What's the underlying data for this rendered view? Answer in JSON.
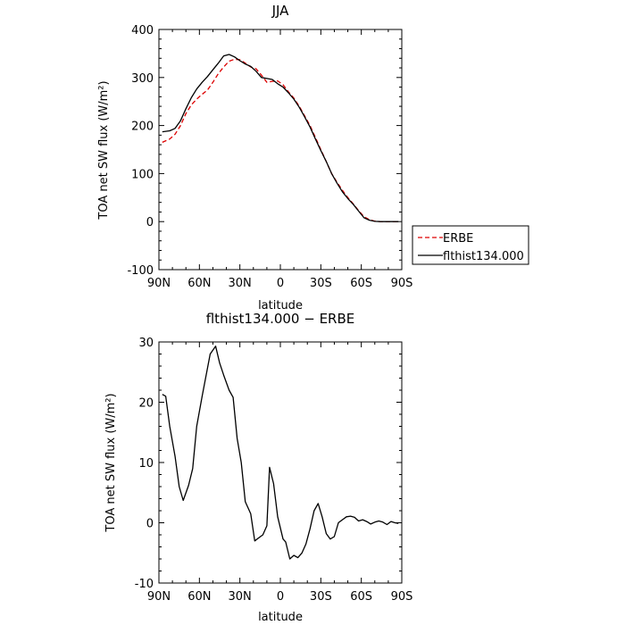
{
  "chart_data": [
    {
      "type": "line",
      "title": "JJA",
      "xlabel": "latitude",
      "ylabel": "TOA net SW flux (W/m²)",
      "xlim": [
        90,
        -90
      ],
      "ylim": [
        -100,
        400
      ],
      "x_ticks": [
        "90N",
        "60N",
        "30N",
        "0",
        "30S",
        "60S",
        "90S"
      ],
      "y_ticks": [
        "-100",
        "0",
        "100",
        "200",
        "300",
        "400"
      ],
      "legend_position": "right-bottom-outside",
      "series": [
        {
          "name": "ERBE",
          "color": "#dd0000",
          "dash": true,
          "x": [
            87.5,
            82,
            78,
            74,
            70,
            66,
            62,
            58,
            54,
            50,
            46,
            42,
            38,
            34,
            30,
            26,
            22,
            18,
            14,
            10,
            6,
            2,
            -2,
            -6,
            -10,
            -14,
            -18,
            -22,
            -26,
            -30,
            -34,
            -38,
            -42,
            -46,
            -50,
            -54,
            -58,
            -62,
            -66,
            -70,
            -74,
            -78,
            -82,
            -87.5
          ],
          "y": [
            165,
            172,
            182,
            200,
            225,
            243,
            255,
            265,
            274,
            290,
            308,
            322,
            334,
            338,
            337,
            330,
            322,
            318,
            305,
            290,
            292,
            293,
            285,
            270,
            257,
            240,
            220,
            200,
            175,
            150,
            125,
            100,
            82,
            65,
            50,
            37,
            23,
            10,
            4,
            1,
            0,
            0,
            0,
            0
          ]
        },
        {
          "name": "flthist134.000",
          "color": "#000000",
          "dash": false,
          "x": [
            87.5,
            82,
            78,
            74,
            70,
            66,
            62,
            58,
            54,
            50,
            46,
            42,
            38,
            34,
            30,
            26,
            22,
            18,
            14,
            10,
            6,
            2,
            -2,
            -6,
            -10,
            -14,
            -18,
            -22,
            -26,
            -30,
            -34,
            -38,
            -42,
            -46,
            -50,
            -54,
            -58,
            -62,
            -66,
            -70,
            -74,
            -78,
            -82,
            -87.5
          ],
          "y": [
            187,
            189,
            194,
            210,
            235,
            258,
            276,
            290,
            302,
            316,
            330,
            345,
            348,
            343,
            335,
            328,
            323,
            313,
            300,
            298,
            296,
            287,
            280,
            268,
            255,
            238,
            218,
            197,
            172,
            148,
            125,
            100,
            80,
            62,
            48,
            36,
            22,
            8,
            3,
            0.5,
            0,
            0,
            0,
            0
          ]
        }
      ]
    },
    {
      "type": "line",
      "title": "flthist134.000 − ERBE",
      "xlabel": "latitude",
      "ylabel": "TOA net SW flux (W/m²)",
      "xlim": [
        90,
        -90
      ],
      "ylim": [
        -10,
        30
      ],
      "x_ticks": [
        "90N",
        "60N",
        "30N",
        "0",
        "30S",
        "60S",
        "90S"
      ],
      "y_ticks": [
        "-10",
        "0",
        "10",
        "20",
        "30"
      ],
      "series": [
        {
          "color": "#000000",
          "x": [
            87.5,
            85,
            82,
            78,
            75,
            72,
            68,
            65,
            62,
            58,
            55,
            52,
            48,
            45,
            42,
            38,
            35,
            32,
            29,
            26,
            22,
            19,
            16,
            13,
            10,
            8,
            5,
            2,
            -2,
            -4,
            -7,
            -10,
            -13,
            -16,
            -19,
            -22,
            -25,
            -28,
            -31,
            -34,
            -37,
            -40,
            -43,
            -46,
            -49,
            -52,
            -55,
            -58,
            -61,
            -64,
            -67,
            -70,
            -73,
            -76,
            -79,
            -82,
            -85,
            -87.5
          ],
          "y": [
            21.3,
            21.0,
            16,
            11,
            6,
            3.7,
            6.2,
            9,
            16,
            21,
            24.5,
            28,
            29.3,
            26.5,
            24.5,
            22,
            20.8,
            14,
            10,
            3.5,
            1.5,
            -3,
            -2.5,
            -2,
            -0.5,
            9.2,
            6.5,
            1,
            -2.7,
            -3.2,
            -6,
            -5.4,
            -5.8,
            -5,
            -3.5,
            -1,
            2,
            3.2,
            1,
            -1.8,
            -2.7,
            -2.3,
            0,
            0.5,
            1,
            1.1,
            0.9,
            0.3,
            0.5,
            0.2,
            -0.2,
            0.1,
            0.3,
            0.1,
            -0.3,
            0.2,
            0,
            -0.1
          ]
        }
      ]
    }
  ]
}
